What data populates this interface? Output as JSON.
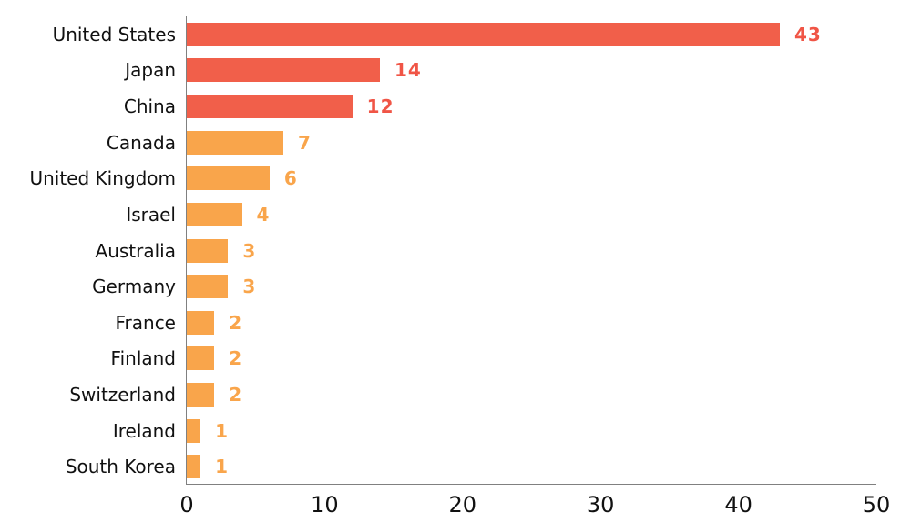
{
  "chart_data": {
    "type": "bar",
    "orientation": "horizontal",
    "title": "",
    "xlabel": "",
    "ylabel": "",
    "categories": [
      "United States",
      "Japan",
      "China",
      "Canada",
      "United Kingdom",
      "Israel",
      "Australia",
      "Germany",
      "France",
      "Finland",
      "Switzerland",
      "Ireland",
      "South Korea"
    ],
    "values": [
      43,
      14,
      12,
      7,
      6,
      4,
      3,
      3,
      2,
      2,
      2,
      1,
      1
    ],
    "bar_colors": [
      "#f15f4a",
      "#f15f4a",
      "#f15f4a",
      "#f9a54b",
      "#f9a54b",
      "#f9a54b",
      "#f9a54b",
      "#f9a54b",
      "#f9a54b",
      "#f9a54b",
      "#f9a54b",
      "#f9a54b",
      "#f9a54b"
    ],
    "value_label_colors": [
      "#f05546",
      "#f05546",
      "#f05546",
      "#f9a54b",
      "#f9a54b",
      "#f9a54b",
      "#f9a54b",
      "#f9a54b",
      "#f9a54b",
      "#f9a54b",
      "#f9a54b",
      "#f9a54b",
      "#f9a54b"
    ],
    "x_ticks": [
      "0",
      "10",
      "20",
      "30",
      "40",
      "50"
    ],
    "xlim": [
      0,
      50
    ],
    "grid": false,
    "legend": null,
    "colors": {
      "high_series": "#f15f4a",
      "low_series": "#f9a54b",
      "axis": "#808080",
      "text": "#111111",
      "background": "#ffffff"
    }
  }
}
